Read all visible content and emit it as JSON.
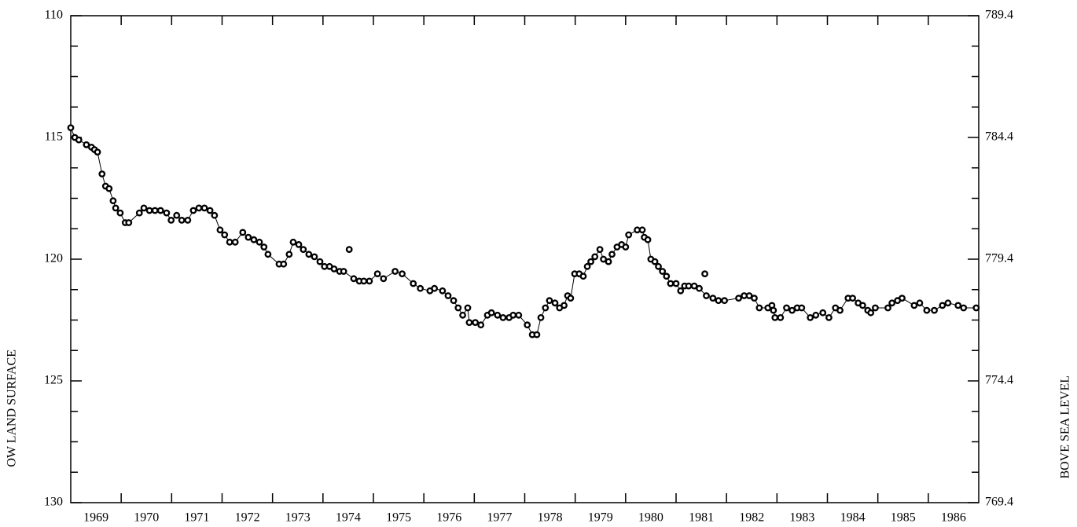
{
  "chart_data": {
    "type": "line",
    "y_label": "OW LAND SURFACE",
    "y2_label": "BOVE SEA LEVEL",
    "xlim": [
      1969,
      1987
    ],
    "ylim": [
      110,
      130
    ],
    "y2lim": [
      789.4,
      769.4
    ],
    "yticks": [
      110,
      115,
      120,
      125,
      130
    ],
    "y2ticks": [
      789.4,
      784.4,
      779.4,
      774.4,
      769.4
    ],
    "xticks": [
      {
        "value": 1969.5,
        "label": "1969"
      },
      {
        "value": 1970.5,
        "label": "1970"
      },
      {
        "value": 1971.5,
        "label": "1971"
      },
      {
        "value": 1972.5,
        "label": "1972"
      },
      {
        "value": 1973.5,
        "label": "1973"
      },
      {
        "value": 1974.5,
        "label": "1974"
      },
      {
        "value": 1975.5,
        "label": "1975"
      },
      {
        "value": 1976.5,
        "label": "1976"
      },
      {
        "value": 1977.5,
        "label": "1977"
      },
      {
        "value": 1978.5,
        "label": "1978"
      },
      {
        "value": 1979.5,
        "label": "1979"
      },
      {
        "value": 1980.5,
        "label": "1980"
      },
      {
        "value": 1981.5,
        "label": "1981"
      },
      {
        "value": 1982.5,
        "label": "1982"
      },
      {
        "value": 1983.5,
        "label": "1983"
      },
      {
        "value": 1984.5,
        "label": "1984"
      },
      {
        "value": 1985.5,
        "label": "1985"
      },
      {
        "value": 1986.5,
        "label": "1986"
      }
    ],
    "xminor": [
      1970,
      1971,
      1972,
      1973,
      1974,
      1975,
      1976,
      1977,
      1978,
      1979,
      1980,
      1981,
      1982,
      1983,
      1984,
      1985,
      1986
    ],
    "color": "#000000",
    "series": [
      {
        "line": true,
        "x": [
          1969.0,
          1969.08,
          1969.16,
          1969.31,
          1969.41,
          1969.47,
          1969.53,
          1969.62,
          1969.69,
          1969.76,
          1969.84,
          1969.89,
          1969.98,
          1970.08,
          1970.15,
          1970.36,
          1970.45,
          1970.56,
          1970.67,
          1970.78,
          1970.9,
          1970.99,
          1971.1,
          1971.2,
          1971.32,
          1971.43,
          1971.54,
          1971.65,
          1971.76,
          1971.85,
          1971.96,
          1972.05,
          1972.15,
          1972.26,
          1972.41,
          1972.52,
          1972.63,
          1972.74,
          1972.83,
          1972.91,
          1973.13,
          1973.22,
          1973.33,
          1973.41,
          1973.52,
          1973.61,
          1973.72,
          1973.83,
          1973.94,
          1974.03,
          1974.13,
          1974.22,
          1974.33,
          1974.41,
          1974.61,
          1974.72,
          1974.81,
          1974.92,
          1975.08,
          1975.2,
          1975.43,
          1975.57,
          1975.79,
          1975.93,
          1976.12,
          1976.21,
          1976.37,
          1976.48,
          1976.59,
          1976.68,
          1976.77,
          1976.87,
          1976.9,
          1977.02,
          1977.13,
          1977.26,
          1977.34,
          1977.46,
          1977.57,
          1977.69,
          1977.77,
          1977.88,
          1978.05,
          1978.15,
          1978.24,
          1978.32,
          1978.41,
          1978.49,
          1978.6,
          1978.69,
          1978.78,
          1978.85,
          1978.91,
          1978.99,
          1979.08,
          1979.16,
          1979.24,
          1979.31,
          1979.39,
          1979.49,
          1979.56,
          1979.66,
          1979.73,
          1979.83,
          1979.92,
          1980.0,
          1980.06,
          1980.23,
          1980.33,
          1980.37,
          1980.44,
          1980.5,
          1980.58,
          1980.65,
          1980.73,
          1980.81,
          1980.89,
          1981.0,
          1981.09,
          1981.17,
          1981.25,
          1981.36,
          1981.46,
          1981.6,
          1981.73,
          1981.84,
          1981.96,
          1982.24,
          1982.35,
          1982.45,
          1982.55,
          1982.65,
          1982.82,
          1982.9,
          1982.93,
          1982.96,
          1983.07,
          1983.19,
          1983.3,
          1983.4,
          1983.49,
          1983.66,
          1983.77,
          1983.91,
          1984.03,
          1984.16,
          1984.25,
          1984.41,
          1984.5,
          1984.61,
          1984.7,
          1984.8,
          1984.86,
          1984.95,
          1985.2,
          1985.28,
          1985.39,
          1985.48,
          1985.72,
          1985.83,
          1985.97,
          1986.12,
          1986.28,
          1986.39,
          1986.59,
          1986.7,
          1986.95
        ],
        "values": [
          114.6,
          115.0,
          115.1,
          115.3,
          115.4,
          115.5,
          115.6,
          116.5,
          117.0,
          117.1,
          117.6,
          117.9,
          118.1,
          118.5,
          118.5,
          118.1,
          117.9,
          118.0,
          118.0,
          118.0,
          118.1,
          118.4,
          118.2,
          118.4,
          118.4,
          118.0,
          117.9,
          117.9,
          118.0,
          118.2,
          118.8,
          119.0,
          119.3,
          119.3,
          118.9,
          119.1,
          119.2,
          119.3,
          119.5,
          119.8,
          120.2,
          120.2,
          119.8,
          119.3,
          119.4,
          119.6,
          119.8,
          119.9,
          120.1,
          120.3,
          120.3,
          120.4,
          120.5,
          120.5,
          120.8,
          120.9,
          120.9,
          120.9,
          120.6,
          120.8,
          120.5,
          120.6,
          121.0,
          121.2,
          121.3,
          121.2,
          121.3,
          121.5,
          121.7,
          122.0,
          122.3,
          122.0,
          122.6,
          122.6,
          122.7,
          122.3,
          122.2,
          122.3,
          122.4,
          122.4,
          122.3,
          122.3,
          122.7,
          123.1,
          123.1,
          122.4,
          122.0,
          121.7,
          121.8,
          122.0,
          121.9,
          121.5,
          121.6,
          120.6,
          120.6,
          120.7,
          120.3,
          120.1,
          119.9,
          119.6,
          120.0,
          120.1,
          119.8,
          119.5,
          119.4,
          119.5,
          119.0,
          118.8,
          118.8,
          119.1,
          119.2,
          120.0,
          120.1,
          120.3,
          120.5,
          120.7,
          121.0,
          121.0,
          121.3,
          121.1,
          121.1,
          121.1,
          121.2,
          121.5,
          121.6,
          121.7,
          121.7,
          121.6,
          121.5,
          121.5,
          121.6,
          122.0,
          122.0,
          121.9,
          122.1,
          122.4,
          122.4,
          122.0,
          122.1,
          122.0,
          122.0,
          122.4,
          122.3,
          122.2,
          122.4,
          122.0,
          122.1,
          121.6,
          121.6,
          121.8,
          121.9,
          122.1,
          122.2,
          122.0,
          122.0,
          121.8,
          121.7,
          121.6,
          121.9,
          121.8,
          122.1,
          122.1,
          121.9,
          121.8,
          121.9,
          122.0,
          122.0
        ]
      },
      {
        "line": false,
        "x": [
          1974.52,
          1981.57
        ],
        "values": [
          119.6,
          120.6
        ]
      }
    ]
  }
}
